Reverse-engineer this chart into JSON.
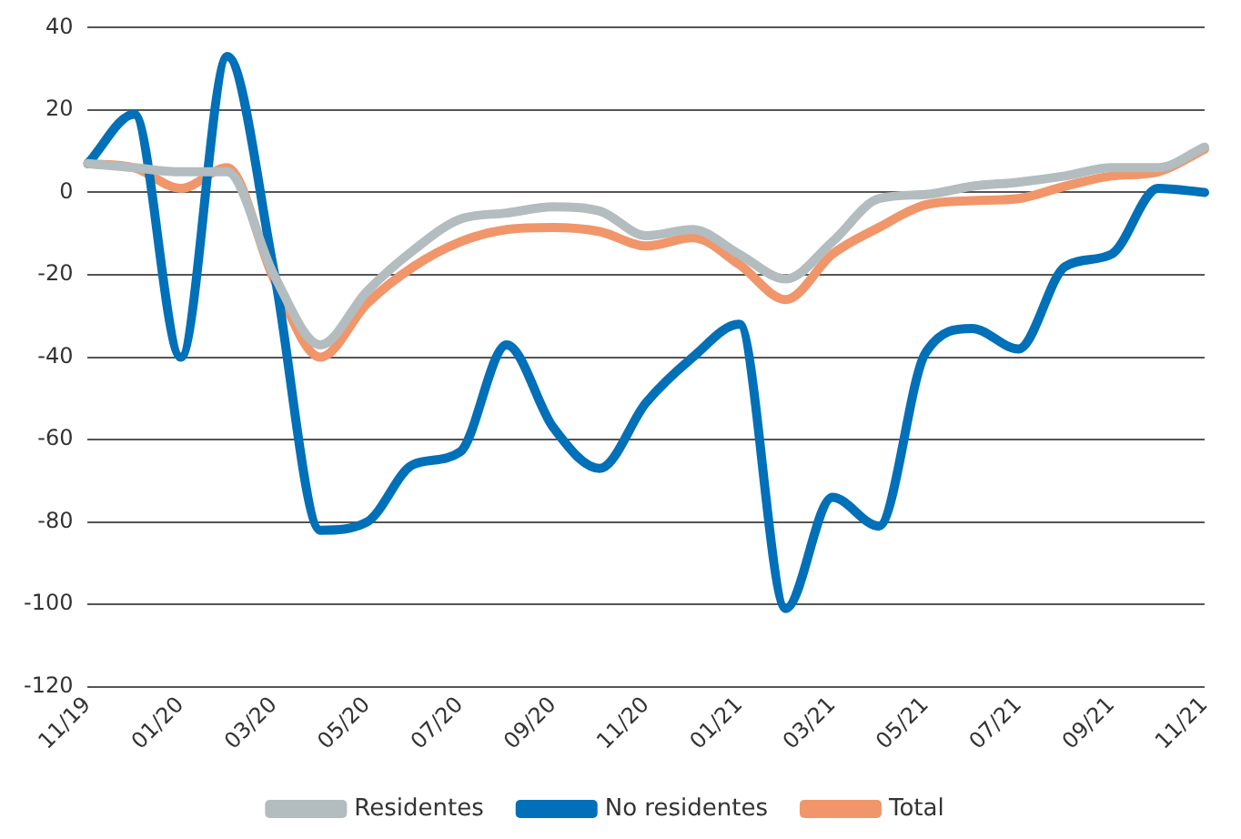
{
  "chart_data": {
    "type": "line",
    "categories": [
      "11/19",
      null,
      "01/20",
      null,
      "03/20",
      null,
      "05/20",
      null,
      "07/20",
      null,
      "09/20",
      null,
      "11/20",
      null,
      "01/21",
      null,
      "03/21",
      null,
      "05/21",
      null,
      "07/21",
      null,
      "09/21",
      null,
      "11/21"
    ],
    "series": [
      {
        "name": "Residentes",
        "color": "#b3bcbf",
        "values": [
          7,
          6,
          5,
          5,
          -20,
          -37,
          -24,
          -14,
          -6.5,
          -5,
          -3.5,
          -4.5,
          -10.5,
          -9,
          -15,
          -21,
          -12,
          -1.5,
          -0.5,
          1.5,
          2.5,
          4,
          6,
          6,
          11
        ]
      },
      {
        "name": "No residentes",
        "color": "#0070b8",
        "values": [
          7,
          19,
          -40,
          33,
          -19,
          -82,
          -80,
          -66,
          -63,
          -37,
          -57,
          -67,
          -51,
          -40,
          -32,
          -101,
          -74,
          -81,
          -39,
          -33,
          -38,
          -18,
          -15,
          1,
          0
        ]
      },
      {
        "name": "Total",
        "color": "#f0966a",
        "values": [
          7,
          6,
          1,
          6,
          -21,
          -40,
          -27,
          -18,
          -12,
          -9,
          -8.5,
          -9.5,
          -13,
          -11,
          -17.5,
          -26,
          -15,
          -8.5,
          -3,
          -2,
          -1.5,
          1.5,
          4,
          5,
          10.5
        ]
      }
    ],
    "ylim": [
      -120,
      40
    ],
    "yticks": [
      -120,
      -100,
      -80,
      -60,
      -40,
      -20,
      0,
      20,
      40
    ],
    "grid": "y",
    "legend": "bottom",
    "marker": "none",
    "line_style": "solid"
  }
}
